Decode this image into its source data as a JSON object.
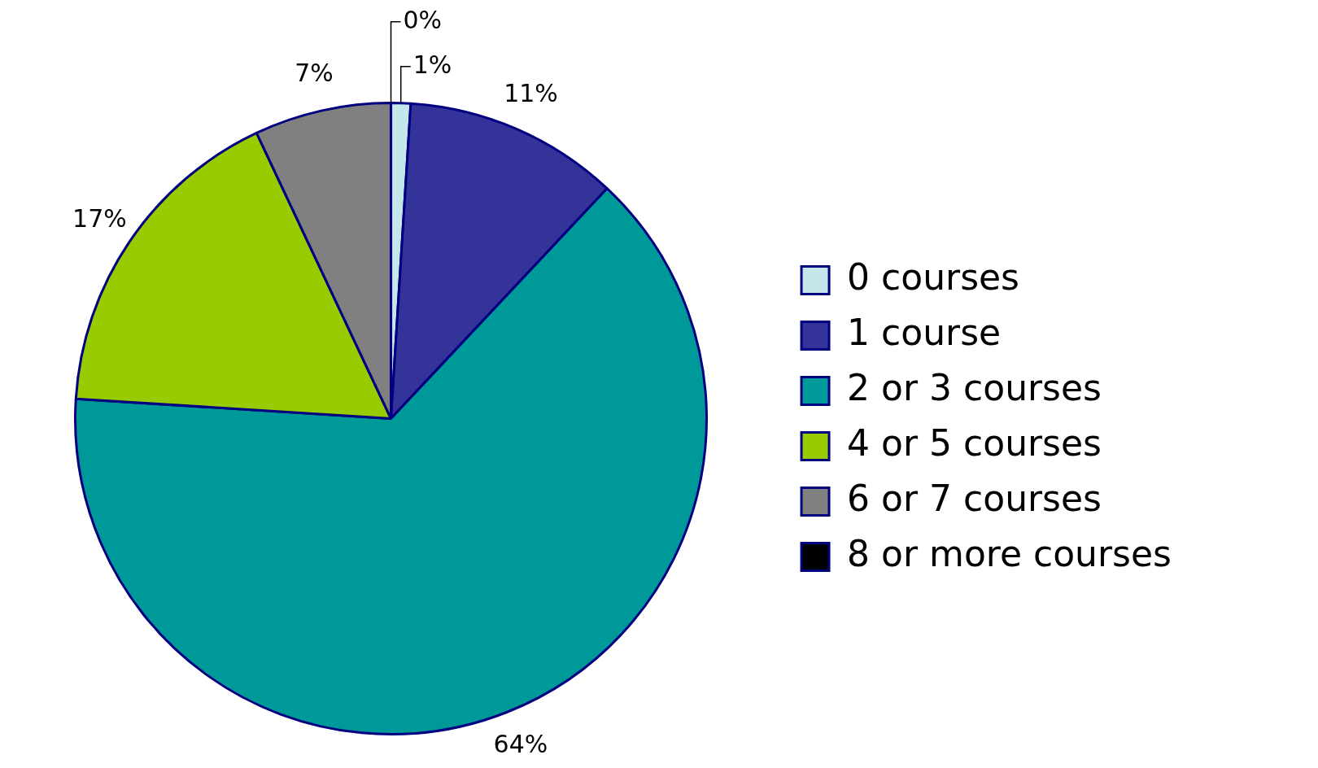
{
  "chart_data": {
    "type": "pie",
    "categories": [
      "0 courses",
      "1 course",
      "2 or 3 courses",
      "4 or 5 courses",
      "6 or 7 courses",
      "8 or more courses"
    ],
    "values": [
      1,
      11,
      64,
      17,
      7,
      0
    ],
    "colors": [
      "#c5e6ea",
      "#333399",
      "#009999",
      "#99cc00",
      "#808080",
      "#000000"
    ],
    "value_labels": [
      "1%",
      "11%",
      "64%",
      "17%",
      "7%",
      "0%"
    ],
    "legend": "right"
  }
}
